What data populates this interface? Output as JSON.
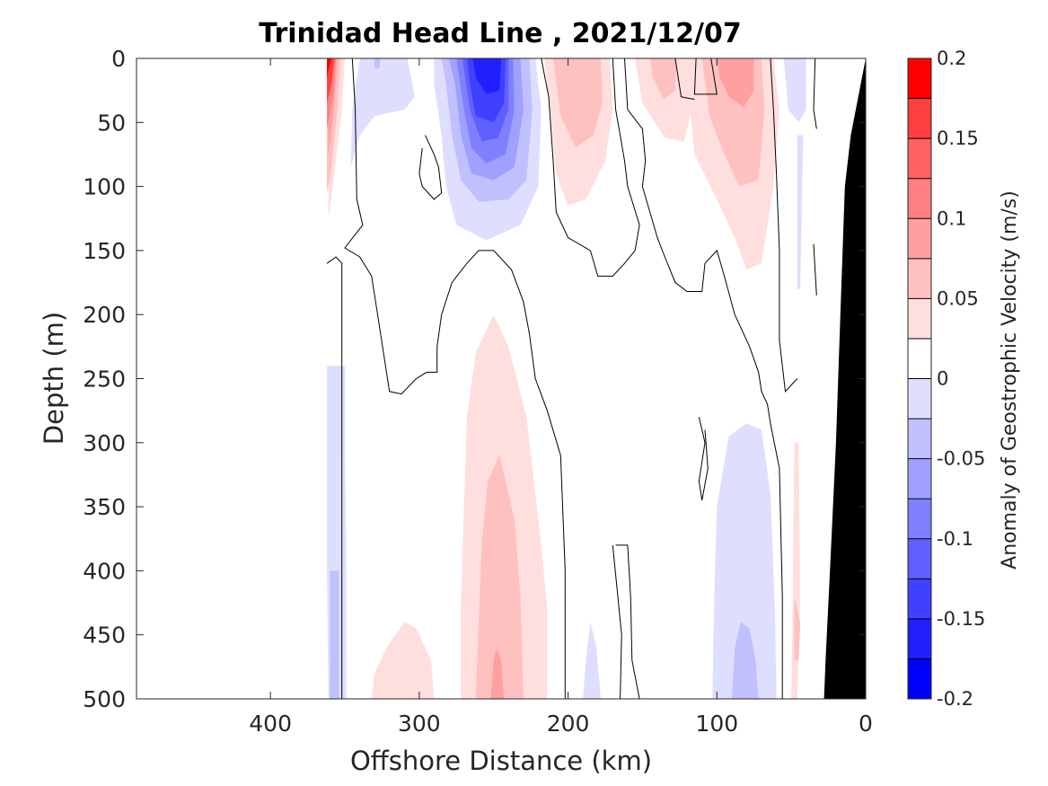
{
  "chart_data": {
    "type": "contour",
    "title": "Trinidad Head Line , 2021/12/07",
    "xlabel": "Offshore Distance (km)",
    "ylabel": "Depth (m)",
    "xlim": [
      490,
      0
    ],
    "ylim": [
      0,
      500
    ],
    "x_direction": "reversed",
    "y_direction": "reversed (depth increasing downward)",
    "xticks": [
      400,
      300,
      200,
      100,
      0
    ],
    "yticks": [
      0,
      50,
      100,
      150,
      200,
      250,
      300,
      350,
      400,
      450,
      500
    ],
    "colorbar": {
      "label": "Anomaly of Geostrophic Velocity (m/s)",
      "range": [
        -0.2,
        0.2
      ],
      "tick_values": [
        0.2,
        0.15,
        0.1,
        0.05,
        0,
        -0.05,
        -0.1,
        -0.15,
        -0.2
      ],
      "levels": [
        -0.2,
        -0.175,
        -0.15,
        -0.125,
        -0.1,
        -0.075,
        -0.05,
        -0.025,
        0,
        0.025,
        0.05,
        0.075,
        0.1,
        0.125,
        0.15,
        0.175,
        0.2
      ],
      "colors": [
        "#0000ff",
        "#2020ff",
        "#4040ff",
        "#6060ff",
        "#8080ff",
        "#a0a0ff",
        "#c0c0ff",
        "#dedeff",
        "#ffffff",
        "#ffffff",
        "#ffdede",
        "#ffc0c0",
        "#ffa0a0",
        "#ff8080",
        "#ff6060",
        "#ff4040",
        "#ff2020",
        "#ff0000"
      ]
    },
    "data_extent_km": [
      360,
      0
    ],
    "bottom_topography": "solid black wedge near 0 km (seafloor), depth reaching ~0 m at 0 km and 500 m at ~28 km",
    "features": [
      {
        "name": "nearshore-jet-core",
        "sign": "negative",
        "x_km": [
          290,
          220
        ],
        "depth_m": [
          0,
          140
        ],
        "min_value": -0.175
      },
      {
        "name": "offshore-edge-positive",
        "sign": "positive",
        "x_km": [
          365,
          355
        ],
        "depth_m": [
          0,
          125
        ],
        "max_value": 0.2
      },
      {
        "name": "surface-positive-195",
        "sign": "positive",
        "x_km": [
          215,
          170
        ],
        "depth_m": [
          0,
          120
        ],
        "max_value": 0.075
      },
      {
        "name": "surface-positive-135",
        "sign": "positive",
        "x_km": [
          155,
          118
        ],
        "depth_m": [
          0,
          65
        ],
        "max_value": 0.075
      },
      {
        "name": "surface-positive-85",
        "sign": "positive",
        "x_km": [
          120,
          60
        ],
        "depth_m": [
          0,
          165
        ],
        "max_value": 0.1
      },
      {
        "name": "deep-positive-250",
        "sign": "positive",
        "x_km": [
          275,
          215
        ],
        "depth_m": [
          200,
          500
        ],
        "max_value": 0.1
      },
      {
        "name": "deep-positive-310",
        "sign": "positive",
        "x_km": [
          335,
          290
        ],
        "depth_m": [
          440,
          500
        ],
        "max_value": 0.05
      },
      {
        "name": "deep-negative-85",
        "sign": "negative",
        "x_km": [
          105,
          60
        ],
        "depth_m": [
          285,
          500
        ],
        "max_value": -0.075
      },
      {
        "name": "offshore-negative-355",
        "sign": "negative",
        "x_km": [
          362,
          348
        ],
        "depth_m": [
          230,
          500
        ],
        "max_value": -0.075
      }
    ]
  }
}
